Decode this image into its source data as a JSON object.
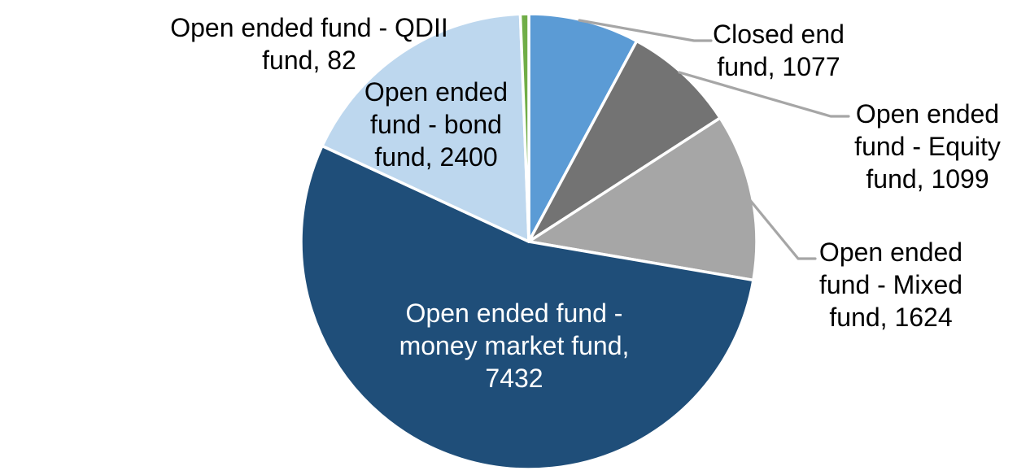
{
  "chart_data": {
    "type": "pie",
    "title": "",
    "start_angle_deg": 0,
    "direction": "clockwise",
    "legend_position": "none",
    "data_label_style": "category-name-and-value",
    "slices": [
      {
        "label": "Closed end fund",
        "value": 1077,
        "color": "#5B9BD5"
      },
      {
        "label": "Open ended fund - Equity fund",
        "value": 1099,
        "color": "#737373"
      },
      {
        "label": "Open ended fund - Mixed fund",
        "value": 1624,
        "color": "#A6A6A6"
      },
      {
        "label": "Open ended fund - money market fund",
        "value": 7432,
        "color": "#1F4E79"
      },
      {
        "label": "Open ended fund - bond fund",
        "value": 2400,
        "color": "#BDD7EE"
      },
      {
        "label": "Open ended fund - QDII fund",
        "value": 82,
        "color": "#70AD47"
      }
    ]
  },
  "labels": {
    "qdii": {
      "lines": [
        "Open ended fund - QDII",
        "fund, 82"
      ]
    },
    "closed": {
      "lines": [
        "Closed end",
        "fund, 1077"
      ]
    },
    "equity": {
      "lines": [
        "Open ended",
        "fund - Equity",
        "fund, 1099"
      ]
    },
    "mixed": {
      "lines": [
        "Open ended",
        "fund - Mixed",
        "fund, 1624"
      ]
    },
    "bond": {
      "lines": [
        "Open ended",
        "fund - bond",
        "fund, 2400"
      ]
    },
    "money": {
      "lines": [
        "Open ended fund -",
        "money market fund,",
        "7432"
      ]
    }
  },
  "colors": {
    "background": "#FFFFFF",
    "slice_border": "#FFFFFF",
    "leader_line": "#A6A6A6",
    "label_text": "#000000",
    "inside_label_text": "#FFFFFF"
  }
}
